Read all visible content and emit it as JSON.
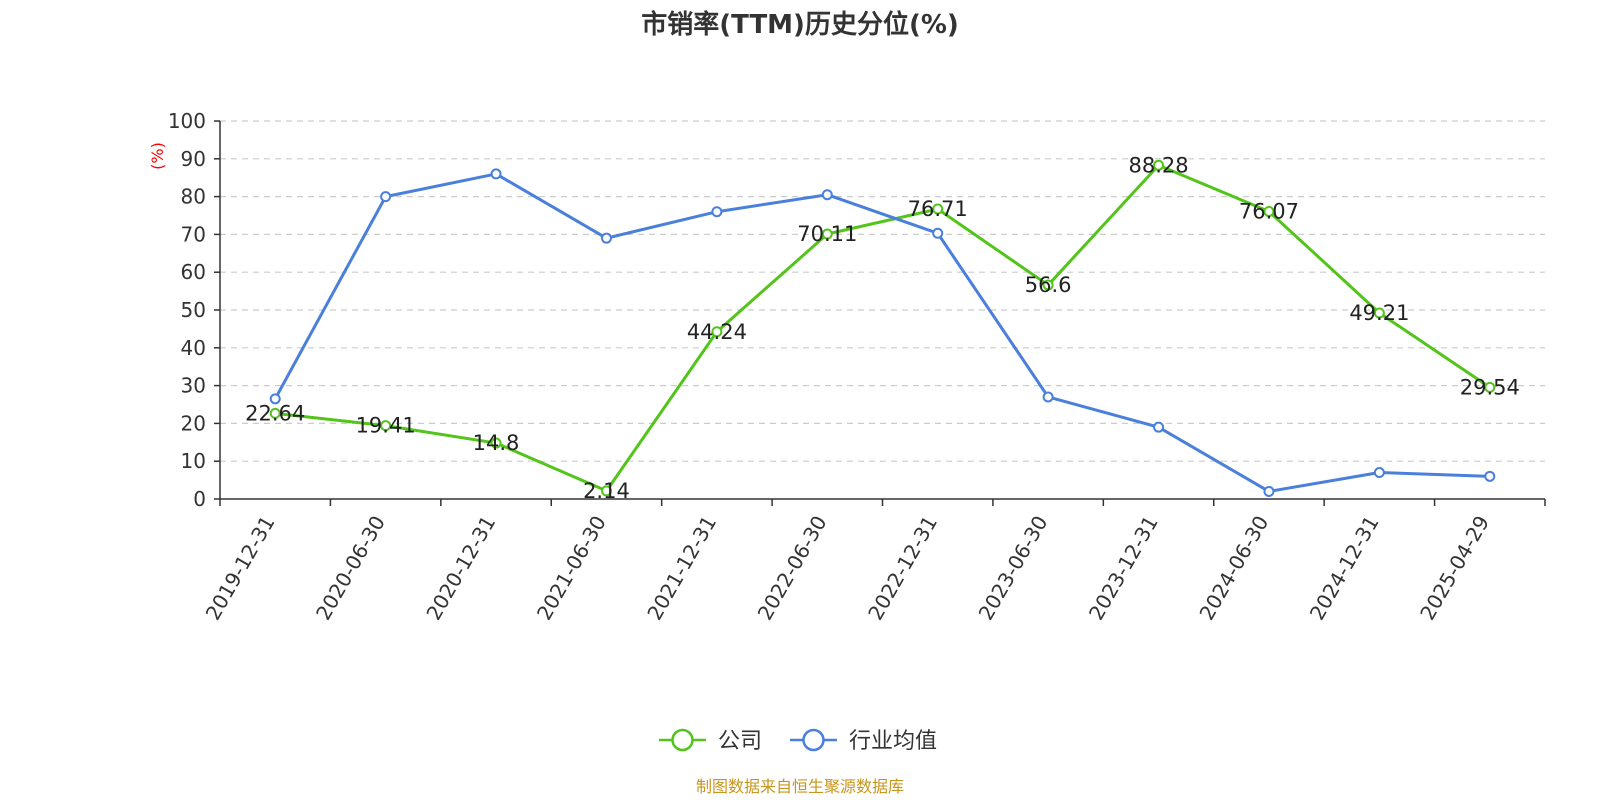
{
  "chart_data": {
    "type": "line",
    "title": "市销率(TTM)历史分位(%)",
    "ylabel": "(%)",
    "ylim": [
      0,
      100
    ],
    "yticks": [
      "0",
      "10",
      "20",
      "30",
      "40",
      "50",
      "60",
      "70",
      "80",
      "90",
      "100"
    ],
    "categories": [
      "2019-12-31",
      "2020-06-30",
      "2020-12-31",
      "2021-06-30",
      "2021-12-31",
      "2022-06-30",
      "2022-12-31",
      "2023-06-30",
      "2023-12-31",
      "2024-06-30",
      "2024-12-31",
      "2025-04-29"
    ],
    "grid": true,
    "legend_position": "bottom-center",
    "series": [
      {
        "name": "公司",
        "color": "#52c41a",
        "values": [
          22.64,
          19.41,
          14.8,
          2.14,
          44.24,
          70.11,
          76.71,
          56.6,
          88.28,
          76.07,
          49.21,
          29.54
        ],
        "labels": [
          "22.64",
          "19.41",
          "14.8",
          "2.14",
          "44.24",
          "70.11",
          "76.71",
          "56.6",
          "88.28",
          "76.07",
          "49.21",
          "29.54"
        ]
      },
      {
        "name": "行业均值",
        "color": "#4a7fdb",
        "values": [
          26.5,
          80,
          86,
          69,
          76,
          80.5,
          70.3,
          27,
          19,
          2,
          7,
          6
        ]
      }
    ]
  },
  "source_text": "制图数据来自恒生聚源数据库",
  "colors": {
    "axis": "#333333",
    "grid": "#cccccc",
    "unit": "#ff0000",
    "source": "#c8961e"
  }
}
